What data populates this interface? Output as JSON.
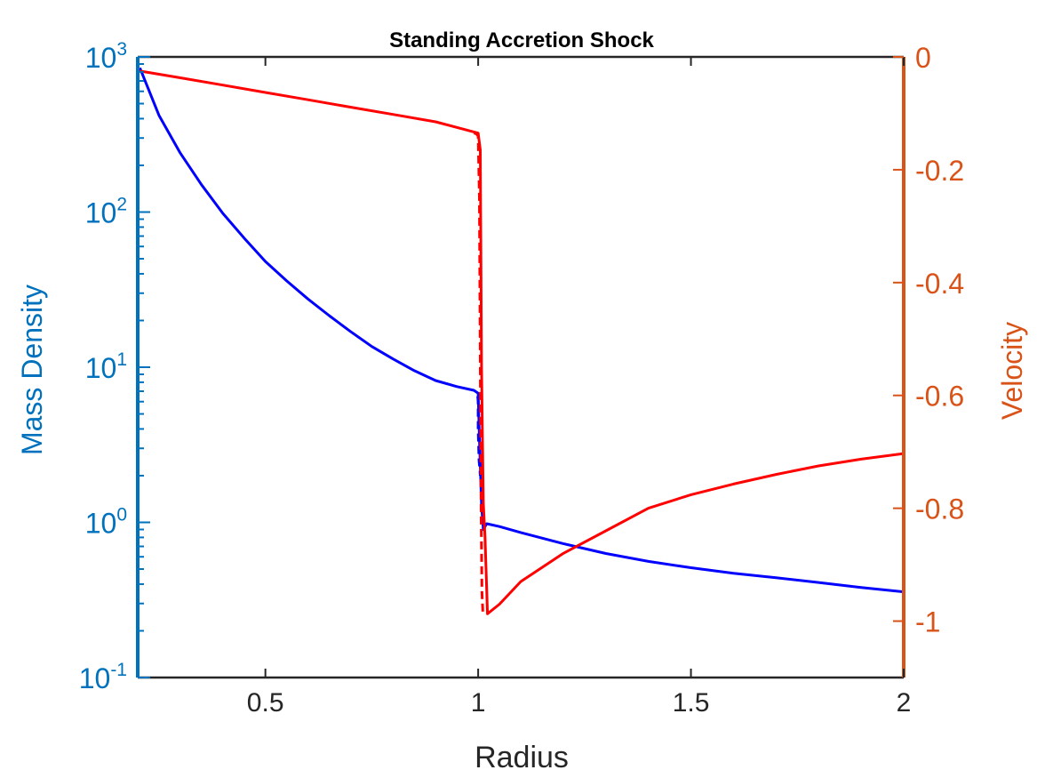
{
  "chart_data": {
    "type": "line",
    "title": "Standing Accretion Shock",
    "xlabel": "Radius",
    "ylabel_left": "Mass Density",
    "ylabel_right": "Velocity",
    "xlim": [
      0.2,
      2.0
    ],
    "ylim_left": [
      0.1,
      1000
    ],
    "yscale_left": "log",
    "ylim_right": [
      -1.1,
      0
    ],
    "x_ticks": [
      0.5,
      1,
      1.5,
      2
    ],
    "x_tick_labels": [
      "0.5",
      "1",
      "1.5",
      "2"
    ],
    "y_left_ticks": [
      {
        "value": 0.1,
        "base": "10",
        "exp": "-1"
      },
      {
        "value": 1,
        "base": "10",
        "exp": "0"
      },
      {
        "value": 10,
        "base": "10",
        "exp": "1"
      },
      {
        "value": 100,
        "base": "10",
        "exp": "2"
      },
      {
        "value": 1000,
        "base": "10",
        "exp": "3"
      }
    ],
    "y_right_ticks": [
      0,
      -0.2,
      -0.4,
      -0.6,
      -0.8,
      -1
    ],
    "y_right_tick_labels": [
      "0",
      "-0.2",
      "-0.4",
      "-0.6",
      "-0.8",
      "-1"
    ],
    "grid": false,
    "colors": {
      "left_axis": "#0072BD",
      "right_axis": "#D95319",
      "density": "#0000FF",
      "velocity": "#FF0000",
      "frame": "#262626"
    },
    "series": [
      {
        "axis": "left",
        "color": "#0000FF",
        "style": "solid",
        "x": [
          0.205,
          0.25,
          0.3,
          0.35,
          0.4,
          0.45,
          0.5,
          0.55,
          0.6,
          0.65,
          0.7,
          0.75,
          0.8,
          0.85,
          0.9,
          0.95,
          0.99,
          1.0,
          1.003,
          1.008,
          1.012,
          1.02,
          1.05,
          1.1,
          1.2,
          1.3,
          1.4,
          1.5,
          1.6,
          1.7,
          1.8,
          1.9,
          2.0
        ],
        "y": [
          850,
          420,
          240,
          150,
          98,
          68,
          48,
          36,
          27.5,
          21.5,
          17,
          13.6,
          11.3,
          9.5,
          8.2,
          7.5,
          7.1,
          6.8,
          3.5,
          1.3,
          0.9,
          0.98,
          0.94,
          0.86,
          0.73,
          0.63,
          0.56,
          0.51,
          0.47,
          0.44,
          0.41,
          0.38,
          0.357
        ]
      },
      {
        "axis": "left",
        "color": "#0000FF",
        "style": "dashed",
        "x": [
          0.999,
          1.0,
          1.0,
          1.002,
          1.004,
          1.005
        ],
        "y": [
          6.5,
          6.0,
          4.0,
          2.5,
          2.2,
          2.0
        ]
      },
      {
        "axis": "right",
        "color": "#FF0000",
        "style": "solid",
        "x": [
          0.205,
          0.3,
          0.4,
          0.5,
          0.6,
          0.7,
          0.8,
          0.9,
          1.0,
          1.005,
          1.008,
          1.012,
          1.016,
          1.022,
          1.05,
          1.1,
          1.2,
          1.3,
          1.4,
          1.5,
          1.6,
          1.7,
          1.8,
          1.9,
          2.0
        ],
        "y": [
          -0.025,
          -0.037,
          -0.05,
          -0.063,
          -0.076,
          -0.089,
          -0.102,
          -0.115,
          -0.135,
          -0.165,
          -0.55,
          -0.79,
          -0.85,
          -0.987,
          -0.97,
          -0.93,
          -0.88,
          -0.84,
          -0.8,
          -0.776,
          -0.757,
          -0.74,
          -0.725,
          -0.713,
          -0.703
        ]
      },
      {
        "axis": "right",
        "color": "#FF0000",
        "style": "dashed",
        "x": [
          0.99,
          0.995,
          1.0,
          1.003,
          1.005,
          1.007,
          1.009,
          1.011
        ],
        "y": [
          -0.135,
          -0.136,
          -0.14,
          -0.25,
          -0.55,
          -0.82,
          -0.95,
          -0.985
        ]
      }
    ]
  }
}
